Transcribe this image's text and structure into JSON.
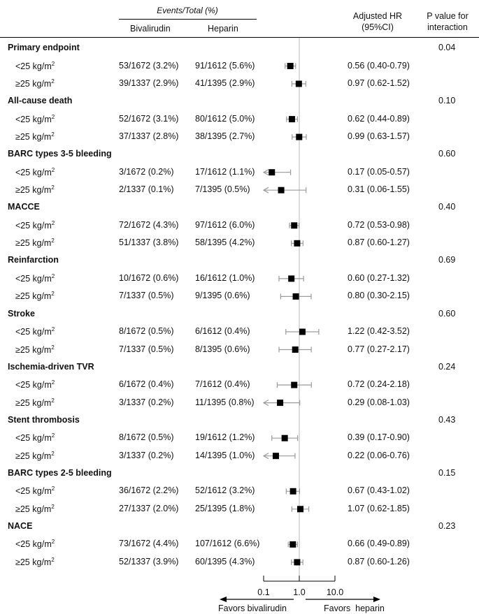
{
  "header": {
    "events_group": "Events/Total (%)",
    "col_bival": "Bivalirudin",
    "col_hep": "Heparin",
    "col_hr_line1": "Adjusted HR",
    "col_hr_line2": "(95%CI)",
    "col_p_line1": "P value for",
    "col_p_line2": "interaction"
  },
  "subgroup_labels": {
    "lt25": "<25 kg/m",
    "ge25": "≥25 kg/m",
    "sup": "2"
  },
  "chart_data": {
    "type": "forest",
    "x_scale": "log",
    "xlim": [
      0.1,
      10
    ],
    "reference_line": 1.0,
    "x_ticks": [
      "0.1",
      "1.0",
      "10.0"
    ],
    "favors_left": "Favors bivalirudin",
    "favors_right": "Favors  heparin",
    "sections": [
      {
        "title": "Primary endpoint",
        "p": "0.04",
        "rows": [
          {
            "label": "lt25",
            "bival": "53/1672 (3.2%)",
            "hep": "91/1612 (5.6%)",
            "hr_text": "0.56 (0.40-0.79)",
            "hr": 0.56,
            "lo": 0.4,
            "hi": 0.79
          },
          {
            "label": "ge25",
            "bival": "39/1337 (2.9%)",
            "hep": "41/1395 (2.9%)",
            "hr_text": "0.97 (0.62-1.52)",
            "hr": 0.97,
            "lo": 0.62,
            "hi": 1.52
          }
        ]
      },
      {
        "title": "All-cause death",
        "p": "0.10",
        "rows": [
          {
            "label": "lt25",
            "bival": "52/1672 (3.1%)",
            "hep": "80/1612 (5.0%)",
            "hr_text": "0.62 (0.44-0.89)",
            "hr": 0.62,
            "lo": 0.44,
            "hi": 0.89
          },
          {
            "label": "ge25",
            "bival": "37/1337 (2.8%)",
            "hep": "38/1395 (2.7%)",
            "hr_text": "0.99 (0.63-1.57)",
            "hr": 0.99,
            "lo": 0.63,
            "hi": 1.57
          }
        ]
      },
      {
        "title": "BARC types 3-5 bleeding",
        "p": "0.60",
        "rows": [
          {
            "label": "lt25",
            "bival": "3/1672 (0.2%)",
            "hep": "17/1612 (1.1%)",
            "hr_text": "0.17 (0.05-0.57)",
            "hr": 0.17,
            "lo": 0.05,
            "hi": 0.57
          },
          {
            "label": "ge25",
            "bival": "2/1337 (0.1%)",
            "hep": "7/1395 (0.5%)",
            "hr_text": "0.31 (0.06-1.55)",
            "hr": 0.31,
            "lo": 0.06,
            "hi": 1.55
          }
        ]
      },
      {
        "title": "MACCE",
        "p": "0.40",
        "rows": [
          {
            "label": "lt25",
            "bival": "72/1672 (4.3%)",
            "hep": "97/1612 (6.0%)",
            "hr_text": "0.72 (0.53-0.98)",
            "hr": 0.72,
            "lo": 0.53,
            "hi": 0.98
          },
          {
            "label": "ge25",
            "bival": "51/1337 (3.8%)",
            "hep": "58/1395 (4.2%)",
            "hr_text": "0.87 (0.60-1.27)",
            "hr": 0.87,
            "lo": 0.6,
            "hi": 1.27
          }
        ]
      },
      {
        "title": "Reinfarction",
        "p": "0.69",
        "rows": [
          {
            "label": "lt25",
            "bival": "10/1672 (0.6%)",
            "hep": "16/1612 (1.0%)",
            "hr_text": "0.60 (0.27-1.32)",
            "hr": 0.6,
            "lo": 0.27,
            "hi": 1.32
          },
          {
            "label": "ge25",
            "bival": "7/1337 (0.5%)",
            "hep": "9/1395 (0.6%)",
            "hr_text": "0.80 (0.30-2.15)",
            "hr": 0.8,
            "lo": 0.3,
            "hi": 2.15
          }
        ]
      },
      {
        "title": "Stroke",
        "p": "0.60",
        "rows": [
          {
            "label": "lt25",
            "bival": "8/1672 (0.5%)",
            "hep": "6/1612 (0.4%)",
            "hr_text": "1.22 (0.42-3.52)",
            "hr": 1.22,
            "lo": 0.42,
            "hi": 3.52
          },
          {
            "label": "ge25",
            "bival": "7/1337 (0.5%)",
            "hep": "8/1395 (0.6%)",
            "hr_text": "0.77 (0.27-2.17)",
            "hr": 0.77,
            "lo": 0.27,
            "hi": 2.17
          }
        ]
      },
      {
        "title": "Ischemia-driven TVR",
        "p": "0.24",
        "rows": [
          {
            "label": "lt25",
            "bival": "6/1672 (0.4%)",
            "hep": "7/1612 (0.4%)",
            "hr_text": "0.72 (0.24-2.18)",
            "hr": 0.72,
            "lo": 0.24,
            "hi": 2.18
          },
          {
            "label": "ge25",
            "bival": "3/1337 (0.2%)",
            "hep": "11/1395 (0.8%)",
            "hr_text": "0.29 (0.08-1.03)",
            "hr": 0.29,
            "lo": 0.08,
            "hi": 1.03
          }
        ]
      },
      {
        "title": "Stent thrombosis",
        "p": "0.43",
        "rows": [
          {
            "label": "lt25",
            "bival": "8/1672 (0.5%)",
            "hep": "19/1612 (1.2%)",
            "hr_text": "0.39 (0.17-0.90)",
            "hr": 0.39,
            "lo": 0.17,
            "hi": 0.9
          },
          {
            "label": "ge25",
            "bival": "3/1337 (0.2%)",
            "hep": "14/1395 (1.0%)",
            "hr_text": "0.22 (0.06-0.76)",
            "hr": 0.22,
            "lo": 0.06,
            "hi": 0.76
          }
        ]
      },
      {
        "title": "BARC types 2-5 bleeding",
        "p": "0.15",
        "rows": [
          {
            "label": "lt25",
            "bival": "36/1672 (2.2%)",
            "hep": "52/1612 (3.2%)",
            "hr_text": "0.67 (0.43-1.02)",
            "hr": 0.67,
            "lo": 0.43,
            "hi": 1.02
          },
          {
            "label": "ge25",
            "bival": "27/1337 (2.0%)",
            "hep": "25/1395 (1.8%)",
            "hr_text": "1.07 (0.62-1.85)",
            "hr": 1.07,
            "lo": 0.62,
            "hi": 1.85
          }
        ]
      },
      {
        "title": "NACE",
        "p": "0.23",
        "rows": [
          {
            "label": "lt25",
            "bival": "73/1672 (4.4%)",
            "hep": "107/1612 (6.6%)",
            "hr_text": "0.66 (0.49-0.89)",
            "hr": 0.66,
            "lo": 0.49,
            "hi": 0.89
          },
          {
            "label": "ge25",
            "bival": "52/1337 (3.9%)",
            "hep": "60/1395 (4.3%)",
            "hr_text": "0.87 (0.60-1.26)",
            "hr": 0.87,
            "lo": 0.6,
            "hi": 1.26
          }
        ]
      }
    ]
  }
}
